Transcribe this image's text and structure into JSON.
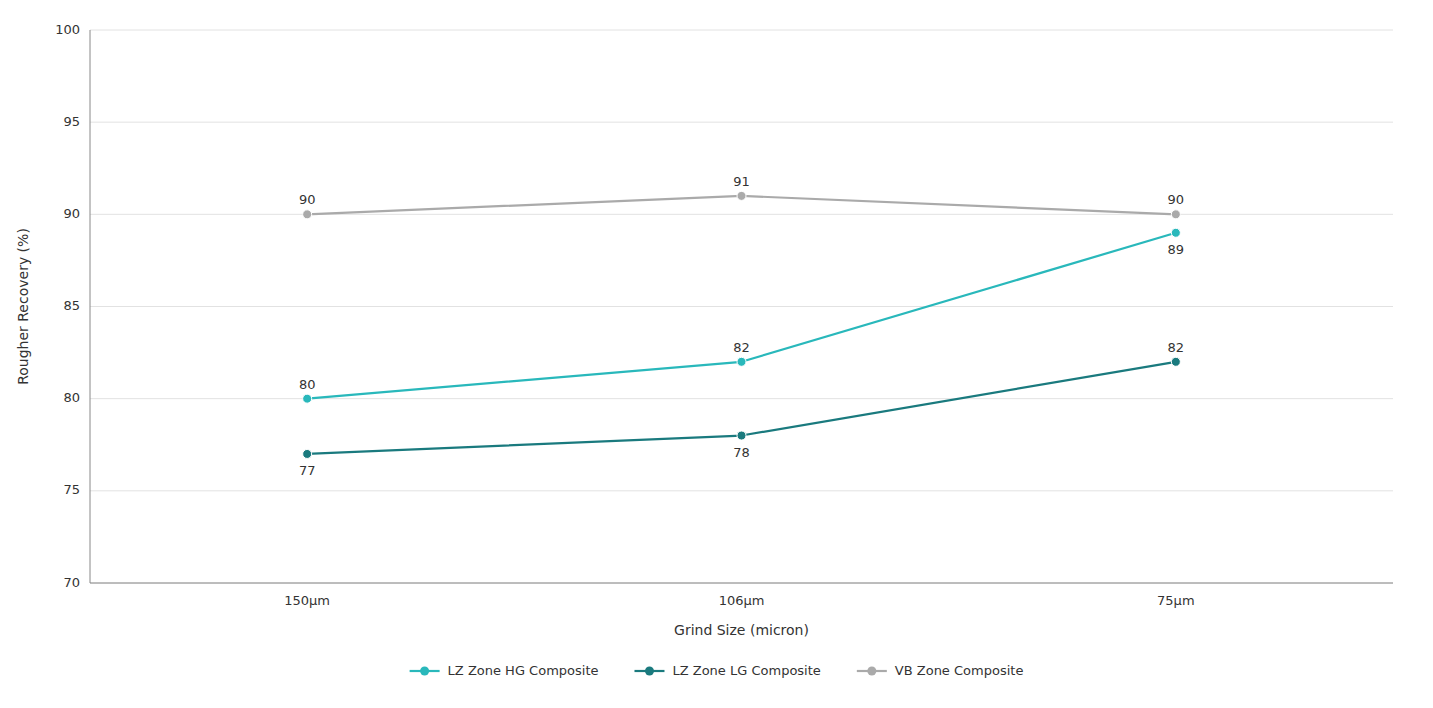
{
  "chart_data": {
    "type": "line",
    "categories": [
      "150μm",
      "106μm",
      "75μm"
    ],
    "series": [
      {
        "name": "LZ Zone HG Composite",
        "color": "#29B8BB",
        "marker": "circle",
        "line_style": "solid",
        "values": [
          80,
          82,
          89
        ]
      },
      {
        "name": "LZ Zone LG Composite",
        "color": "#1A7A7E",
        "marker": "circle",
        "line_style": "solid",
        "values": [
          77,
          78,
          82
        ]
      },
      {
        "name": "VB Zone Composite",
        "color": "#AAAAAA",
        "marker": "circle",
        "line_style": "solid",
        "values": [
          90,
          91,
          90
        ]
      }
    ],
    "xlabel": "Grind Size (micron)",
    "ylabel": "Rougher Recovery (%)",
    "ylim": [
      70,
      100
    ],
    "yticks": [
      70,
      75,
      80,
      85,
      90,
      95,
      100
    ],
    "grid": true,
    "legend": "bottom",
    "data_labels": true
  }
}
